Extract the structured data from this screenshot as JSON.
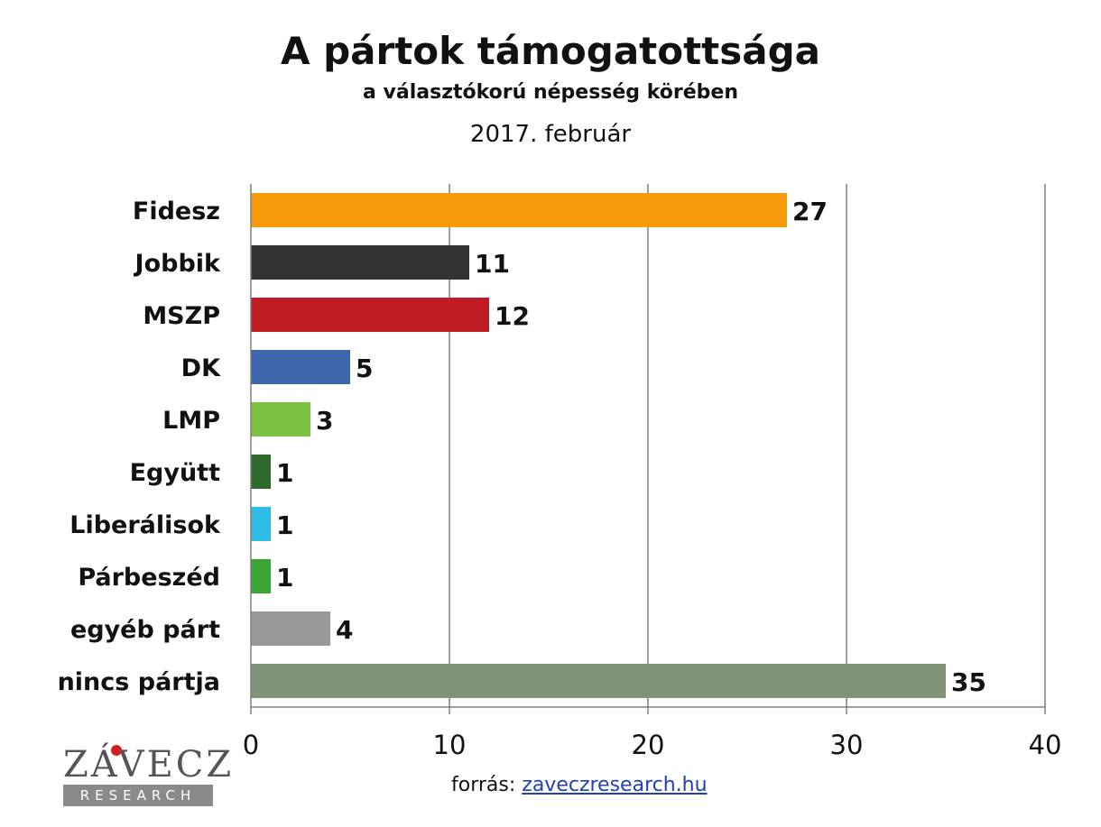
{
  "chart_data": {
    "type": "bar",
    "orientation": "horizontal",
    "title": "A pártok támogatottsága",
    "subtitle": "a választókorú népesség körében",
    "date": "2017. február",
    "categories": [
      "Fidesz",
      "Jobbik",
      "MSZP",
      "DK",
      "LMP",
      "Együtt",
      "Liberálisok",
      "Párbeszéd",
      "egyéb párt",
      "nincs pártja"
    ],
    "values": [
      27,
      11,
      12,
      5,
      3,
      1,
      1,
      1,
      4,
      35
    ],
    "colors": [
      "#f79a0a",
      "#333333",
      "#c01c24",
      "#3d67ad",
      "#7dc142",
      "#2e6b2a",
      "#2fbce6",
      "#3aa536",
      "#999999",
      "#809478"
    ],
    "xlim": [
      0,
      40
    ],
    "xticks": [
      0,
      10,
      20,
      30,
      40
    ],
    "grid": true,
    "legend": "none"
  },
  "logo": {
    "word": "ZÁVECZ",
    "band": "RESEARCH"
  },
  "source": {
    "label": "forrás:",
    "link": "zaveczresearch.hu"
  }
}
